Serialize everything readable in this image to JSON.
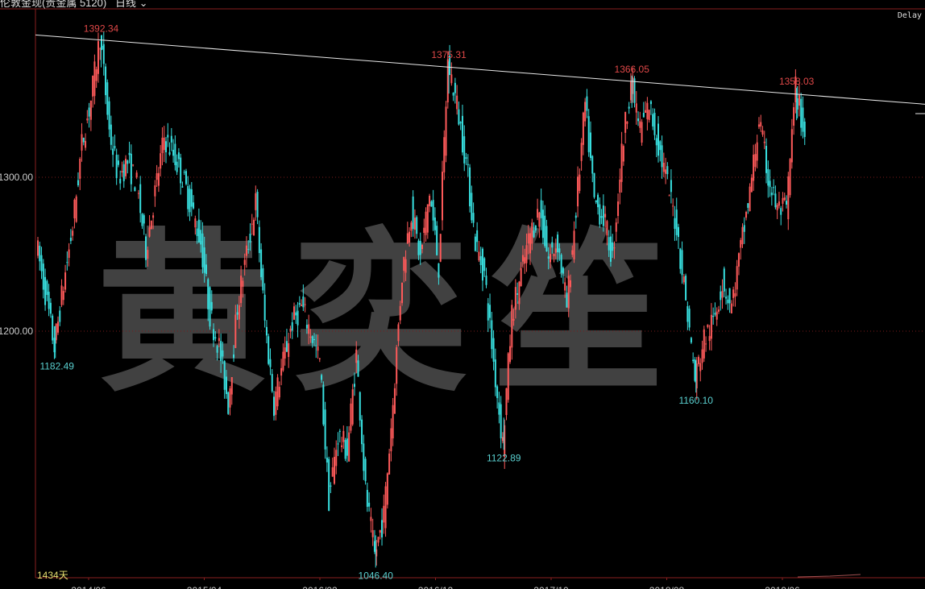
{
  "header": {
    "title": "伦敦金现(贵金属 5120)",
    "period": "日线",
    "delay": "Delay"
  },
  "footer": {
    "days": "1434天"
  },
  "watermark": "黄奕笙",
  "colors": {
    "up": "#ff5a5a",
    "down": "#38e0e0",
    "axis": "#8a2020",
    "grid": "#7a1a1a",
    "high_label": "#e04848",
    "low_label": "#5ad0d0",
    "trendline": "#e8e8e8",
    "background": "#000000"
  },
  "chart_data": {
    "type": "candlestick",
    "title": "",
    "ylim": [
      1030,
      1402
    ],
    "yticks": [
      {
        "value": 1200,
        "label": "1200.00"
      },
      {
        "value": 1300,
        "label": "1300.00"
      }
    ],
    "xticks": [
      "2014/06",
      "2015/04",
      "2016/02",
      "2016/12",
      "2017/10",
      "2018/08",
      "2019/06"
    ],
    "grid": true,
    "bar_count": 1434,
    "close": [
      1258,
      1225,
      1190,
      1230,
      1268,
      1321,
      1350,
      1392,
      1330,
      1300,
      1310,
      1295,
      1253,
      1290,
      1326,
      1315,
      1300,
      1280,
      1258,
      1211,
      1190,
      1153,
      1216,
      1250,
      1284,
      1206,
      1153,
      1180,
      1206,
      1216,
      1200,
      1180,
      1091,
      1133,
      1122,
      1185,
      1096,
      1054,
      1080,
      1153,
      1237,
      1279,
      1247,
      1290,
      1242,
      1375,
      1347,
      1310,
      1258,
      1237,
      1180,
      1127,
      1211,
      1237,
      1263,
      1279,
      1247,
      1258,
      1216,
      1279,
      1347,
      1284,
      1274,
      1247,
      1316,
      1363,
      1331,
      1347,
      1321,
      1295,
      1268,
      1221,
      1169,
      1195,
      1206,
      1232,
      1216,
      1253,
      1290,
      1337,
      1300,
      1279,
      1279,
      1358,
      1326
    ],
    "annotations": [
      {
        "label": "1392.34",
        "value": 1392.34,
        "kind": "high",
        "index": 7
      },
      {
        "label": "1182.49",
        "value": 1182.49,
        "kind": "low",
        "index": 2
      },
      {
        "label": "1046.40",
        "value": 1046.4,
        "kind": "low",
        "index": 37
      },
      {
        "label": "1375.31",
        "value": 1375.31,
        "kind": "high",
        "index": 45
      },
      {
        "label": "1122.89",
        "value": 1122.89,
        "kind": "low",
        "index": 51
      },
      {
        "label": "1366.05",
        "value": 1366.05,
        "kind": "high",
        "index": 65
      },
      {
        "label": "1160.10",
        "value": 1160.1,
        "kind": "low",
        "index": 72
      },
      {
        "label": "1358.03",
        "value": 1358.03,
        "kind": "high",
        "index": 83
      }
    ],
    "trendline": {
      "start": 1392.5,
      "end": 1353.5
    }
  }
}
